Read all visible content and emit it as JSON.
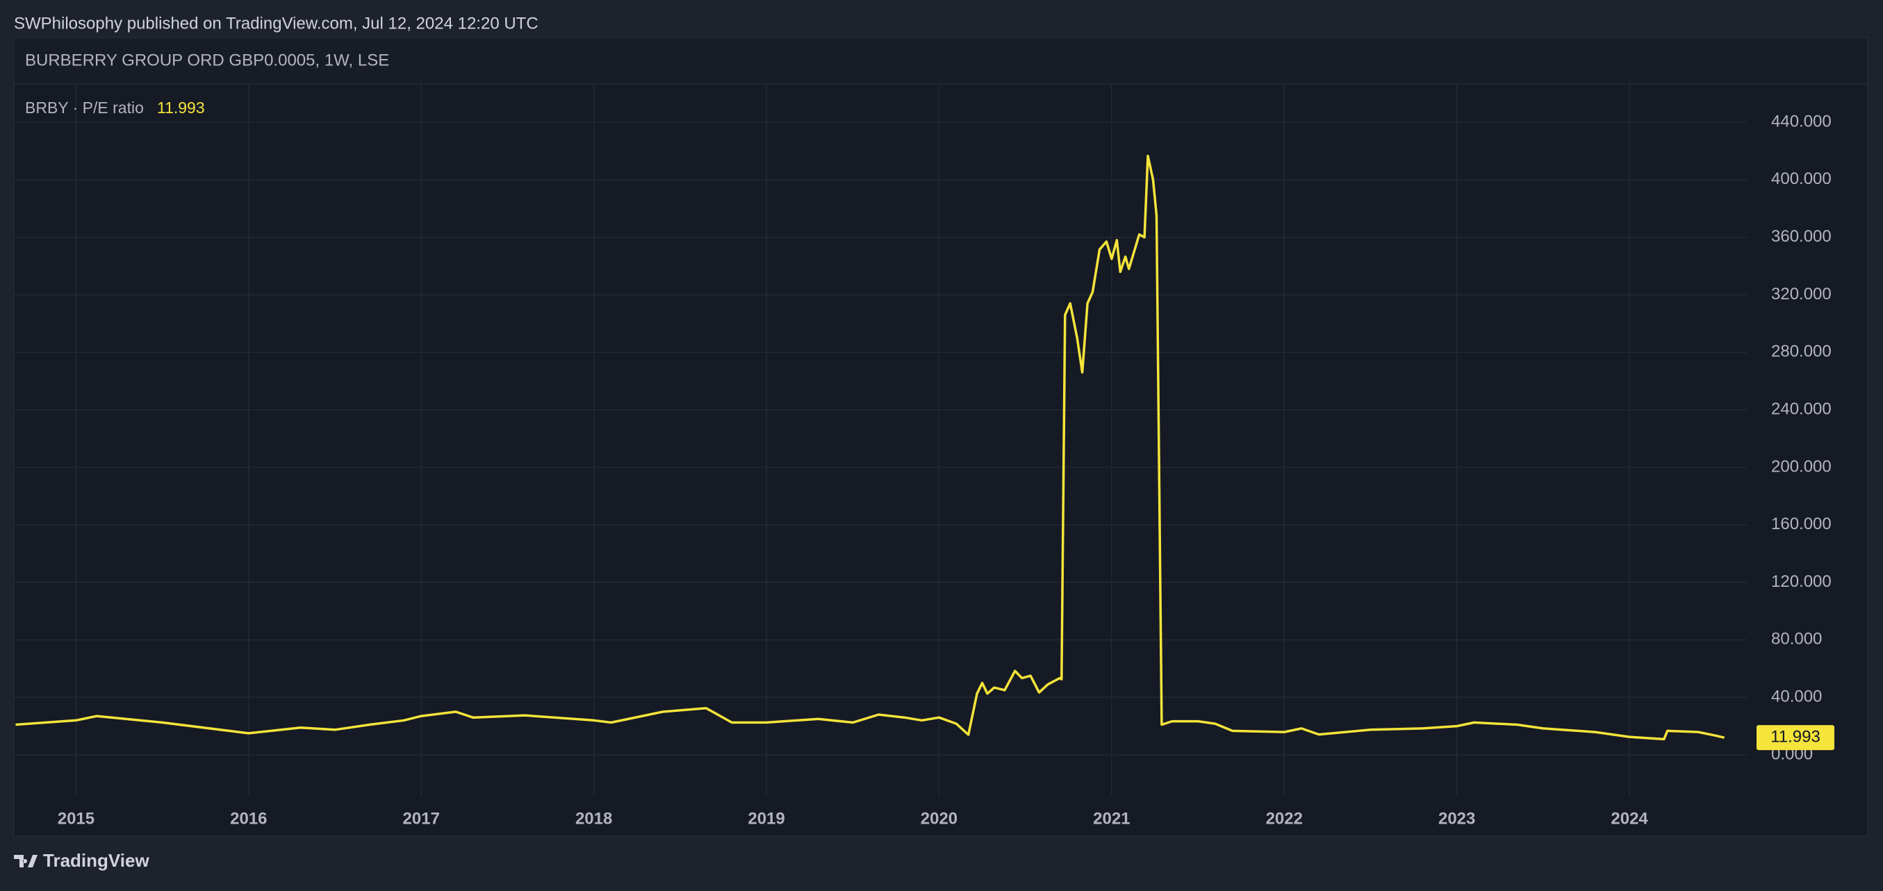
{
  "header": {
    "published": "SWPhilosophy published on TradingView.com, Jul 12, 2024 12:20 UTC",
    "symbol": "BURBERRY GROUP ORD GBP0.0005, 1W, LSE",
    "footer": "TradingView"
  },
  "chart_data": {
    "type": "line",
    "legend_label": "BRBY · P/E ratio",
    "x": [
      2014.65,
      2015.0,
      2015.12,
      2015.5,
      2016.0,
      2016.3,
      2016.5,
      2016.7,
      2016.9,
      2017.0,
      2017.2,
      2017.3,
      2017.6,
      2018.0,
      2018.1,
      2018.4,
      2018.65,
      2018.8,
      2019.0,
      2019.3,
      2019.5,
      2019.65,
      2019.8,
      2019.9,
      2020.0,
      2020.1,
      2020.17,
      2020.22,
      2020.25,
      2020.28,
      2020.32,
      2020.38,
      2020.44,
      2020.48,
      2020.53,
      2020.58,
      2020.63,
      2020.7,
      2020.71,
      2020.73,
      2020.76,
      2020.8,
      2020.83,
      2020.86,
      2020.89,
      2020.93,
      2020.97,
      2021.0,
      2021.03,
      2021.05,
      2021.08,
      2021.1,
      2021.13,
      2021.16,
      2021.19,
      2021.21,
      2021.24,
      2021.26,
      2021.29,
      2021.35,
      2021.5,
      2021.6,
      2021.7,
      2022.0,
      2022.1,
      2022.2,
      2022.5,
      2022.8,
      2023.0,
      2023.1,
      2023.35,
      2023.5,
      2023.8,
      2024.0,
      2024.2,
      2024.22,
      2024.4,
      2024.5,
      2024.55
    ],
    "series": [
      {
        "name": "P/E ratio",
        "color": "#f5e43a",
        "values": [
          21,
          24,
          27,
          22.5,
          15,
          19,
          17.5,
          21,
          24,
          27,
          30,
          26,
          27.5,
          24,
          22.5,
          30,
          32.5,
          22.5,
          22.5,
          25,
          22.5,
          28,
          26,
          24,
          26,
          21.7,
          14,
          42.6,
          50,
          42.6,
          46.8,
          45,
          58.4,
          53.4,
          55,
          43.4,
          49,
          53.4,
          52.6,
          306,
          314,
          290,
          266,
          314,
          322,
          351.5,
          357,
          345,
          358,
          336,
          346.5,
          338,
          350,
          362,
          360,
          416.6,
          400,
          375,
          21,
          23.4,
          23.4,
          21.7,
          16.7,
          15.9,
          18.4,
          14.2,
          17.5,
          18.4,
          20,
          22.5,
          21,
          18.4,
          15.9,
          12.5,
          10.9,
          16.7,
          15.9,
          13.4,
          11.993
        ]
      }
    ],
    "xlim": [
      2014.64,
      2024.68
    ],
    "xticks": [
      2015,
      2016,
      2017,
      2018,
      2019,
      2020,
      2021,
      2022,
      2023,
      2024
    ],
    "ylim": [
      -28.5,
      466.6
    ],
    "yticks": [
      {
        "value": 0,
        "label": "0.000"
      },
      {
        "value": 40,
        "label": "40.000"
      },
      {
        "value": 80,
        "label": "80.000"
      },
      {
        "value": 120,
        "label": "120.000"
      },
      {
        "value": 160,
        "label": "160.000"
      },
      {
        "value": 200,
        "label": "200.000"
      },
      {
        "value": 240,
        "label": "240.000"
      },
      {
        "value": 280,
        "label": "280.000"
      },
      {
        "value": 320,
        "label": "320.000"
      },
      {
        "value": 360,
        "label": "360.000"
      },
      {
        "value": 400,
        "label": "400.000"
      },
      {
        "value": 440,
        "label": "440.000"
      }
    ],
    "grid": true
  }
}
